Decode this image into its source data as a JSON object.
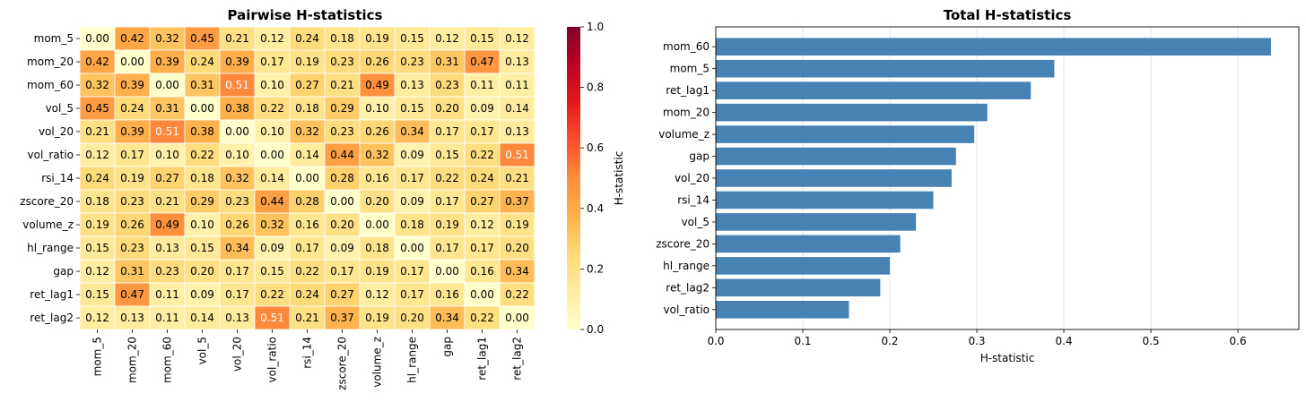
{
  "chart_data": [
    {
      "type": "heatmap",
      "title": "Pairwise H-statistics",
      "row_labels": [
        "mom_5",
        "mom_20",
        "mom_60",
        "vol_5",
        "vol_20",
        "vol_ratio",
        "rsi_14",
        "zscore_20",
        "volume_z",
        "hl_range",
        "gap",
        "ret_lag1",
        "ret_lag2"
      ],
      "col_labels": [
        "mom_5",
        "mom_20",
        "mom_60",
        "vol_5",
        "vol_20",
        "vol_ratio",
        "rsi_14",
        "zscore_20",
        "volume_z",
        "hl_range",
        "gap",
        "ret_lag1",
        "ret_lag2"
      ],
      "values": [
        [
          0.0,
          0.42,
          0.32,
          0.45,
          0.21,
          0.12,
          0.24,
          0.18,
          0.19,
          0.15,
          0.12,
          0.15,
          0.12
        ],
        [
          0.42,
          0.0,
          0.39,
          0.24,
          0.39,
          0.17,
          0.19,
          0.23,
          0.26,
          0.23,
          0.31,
          0.47,
          0.13
        ],
        [
          0.32,
          0.39,
          0.0,
          0.31,
          0.51,
          0.1,
          0.27,
          0.21,
          0.49,
          0.13,
          0.23,
          0.11,
          0.11
        ],
        [
          0.45,
          0.24,
          0.31,
          0.0,
          0.38,
          0.22,
          0.18,
          0.29,
          0.1,
          0.15,
          0.2,
          0.09,
          0.14
        ],
        [
          0.21,
          0.39,
          0.51,
          0.38,
          0.0,
          0.1,
          0.32,
          0.23,
          0.26,
          0.34,
          0.17,
          0.17,
          0.13
        ],
        [
          0.12,
          0.17,
          0.1,
          0.22,
          0.1,
          0.0,
          0.14,
          0.44,
          0.32,
          0.09,
          0.15,
          0.22,
          0.51
        ],
        [
          0.24,
          0.19,
          0.27,
          0.18,
          0.32,
          0.14,
          0.0,
          0.28,
          0.16,
          0.17,
          0.22,
          0.24,
          0.21
        ],
        [
          0.18,
          0.23,
          0.21,
          0.29,
          0.23,
          0.44,
          0.28,
          0.0,
          0.2,
          0.09,
          0.17,
          0.27,
          0.37
        ],
        [
          0.19,
          0.26,
          0.49,
          0.1,
          0.26,
          0.32,
          0.16,
          0.2,
          0.0,
          0.18,
          0.19,
          0.12,
          0.19
        ],
        [
          0.15,
          0.23,
          0.13,
          0.15,
          0.34,
          0.09,
          0.17,
          0.09,
          0.18,
          0.0,
          0.17,
          0.17,
          0.2
        ],
        [
          0.12,
          0.31,
          0.23,
          0.2,
          0.17,
          0.15,
          0.22,
          0.17,
          0.19,
          0.17,
          0.0,
          0.16,
          0.34
        ],
        [
          0.15,
          0.47,
          0.11,
          0.09,
          0.17,
          0.22,
          0.24,
          0.27,
          0.12,
          0.17,
          0.16,
          0.0,
          0.22
        ],
        [
          0.12,
          0.13,
          0.11,
          0.14,
          0.13,
          0.51,
          0.21,
          0.37,
          0.19,
          0.2,
          0.34,
          0.22,
          0.0
        ]
      ],
      "colorbar": {
        "label": "H-statistic",
        "range": [
          0,
          1
        ],
        "ticks": [
          "0.0",
          "0.2",
          "0.4",
          "0.6",
          "0.8",
          "1.0"
        ],
        "colormap": [
          "#ffffcc",
          "#ffeda0",
          "#fed976",
          "#feb24c",
          "#fd8d3c",
          "#fc4e2a",
          "#e31a1c",
          "#bd0026",
          "#800026"
        ]
      }
    },
    {
      "type": "bar",
      "orientation": "horizontal",
      "title": "Total H-statistics",
      "categories": [
        "mom_60",
        "mom_5",
        "ret_lag1",
        "mom_20",
        "volume_z",
        "gap",
        "vol_20",
        "rsi_14",
        "vol_5",
        "zscore_20",
        "hl_range",
        "ret_lag2",
        "vol_ratio"
      ],
      "values": [
        0.638,
        0.389,
        0.362,
        0.312,
        0.297,
        0.276,
        0.271,
        0.25,
        0.23,
        0.212,
        0.2,
        0.189,
        0.153
      ],
      "xlabel": "H-statistic",
      "xlim": [
        0,
        0.67
      ],
      "xticks": [
        "0.0",
        "0.1",
        "0.2",
        "0.3",
        "0.4",
        "0.5",
        "0.6"
      ],
      "grid": "vertical",
      "bar_color": "#4682b4"
    }
  ]
}
